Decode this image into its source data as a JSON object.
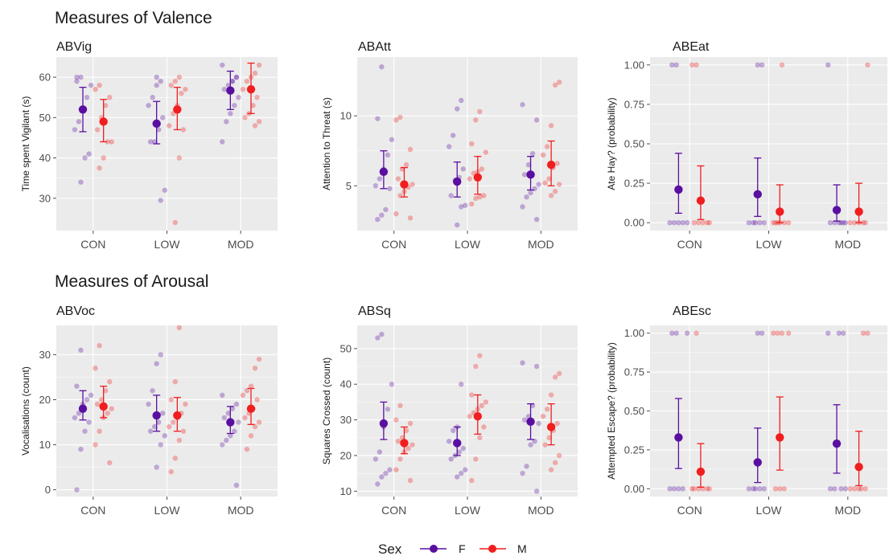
{
  "sections": [
    {
      "title": "Measures of Valence"
    },
    {
      "title": "Measures of Arousal"
    }
  ],
  "legend": {
    "title": "Sex",
    "items": [
      {
        "label": "F",
        "color": "#4B0092"
      },
      {
        "label": "M",
        "color": "#FF1A1A"
      }
    ]
  },
  "colors": {
    "F": "#5a0fa0",
    "M": "#f01e1e",
    "panel_bg": "#ebebeb",
    "grid": "#ffffff"
  },
  "chart_data": [
    {
      "type": "scatter",
      "title": "ABVig",
      "xlabel": "",
      "ylabel": "Time spent Vigilant (s)",
      "categories": [
        "CON",
        "LOW",
        "MOD"
      ],
      "ylim": [
        22,
        65
      ],
      "yticks": [
        30,
        40,
        50,
        60
      ],
      "grid": true,
      "series": [
        {
          "name": "F",
          "mean": [
            52,
            48.5,
            56.7
          ],
          "ci": [
            [
              46.5,
              57.5
            ],
            [
              43.5,
              54
            ],
            [
              52,
              61.5
            ]
          ],
          "points": [
            [
              60,
              59,
              58,
              55,
              52,
              49,
              47,
              41,
              40,
              34,
              60
            ],
            [
              59,
              58,
              55,
              53,
              50,
              47,
              44,
              44,
              32,
              29.5,
              60
            ],
            [
              63,
              60,
              59,
              58,
              57,
              55,
              53,
              51,
              49,
              44,
              60,
              59
            ]
          ]
        },
        {
          "name": "M",
          "mean": [
            49,
            52,
            57
          ],
          "ci": [
            [
              44,
              54.5
            ],
            [
              47,
              57.5
            ],
            [
              51,
              63.5
            ]
          ],
          "points": [
            [
              58,
              57,
              55,
              53,
              50,
              47,
              44,
              44,
              40,
              37.5
            ],
            [
              60,
              59,
              58,
              57,
              56,
              53,
              51,
              48,
              47,
              40,
              24
            ],
            [
              63,
              61,
              60,
              59,
              57,
              55,
              53,
              51,
              50,
              49,
              48,
              57
            ]
          ]
        }
      ]
    },
    {
      "type": "scatter",
      "title": "ABAtt",
      "xlabel": "",
      "ylabel": "Attention to Threat (s)",
      "categories": [
        "CON",
        "LOW",
        "MOD"
      ],
      "ylim": [
        1.8,
        14.2
      ],
      "yticks": [
        5,
        10
      ],
      "grid": true,
      "series": [
        {
          "name": "F",
          "mean": [
            6,
            5.3,
            5.8
          ],
          "ci": [
            [
              4.8,
              7.5
            ],
            [
              4.2,
              6.7
            ],
            [
              4.7,
              7.1
            ]
          ],
          "points": [
            [
              13.5,
              9.8,
              8.3,
              7.2,
              6.2,
              5.5,
              5,
              4.8,
              3.3,
              2.9,
              2.6
            ],
            [
              11.1,
              10.5,
              8.6,
              7.8,
              6.2,
              5.6,
              5.4,
              4.3,
              3.6,
              3.5,
              2.2
            ],
            [
              10.8,
              9.7,
              7.3,
              6.5,
              5.8,
              5.1,
              4.8,
              4.5,
              4.2,
              3.5,
              2.6
            ]
          ]
        },
        {
          "name": "M",
          "mean": [
            5.1,
            5.6,
            6.5
          ],
          "ci": [
            [
              4.2,
              6.3
            ],
            [
              4.4,
              7.1
            ],
            [
              5,
              8.2
            ]
          ],
          "points": [
            [
              9.9,
              9.7,
              7.6,
              6.5,
              6.2,
              5.5,
              5.1,
              4.9,
              4.6,
              4.3,
              3,
              2.7
            ],
            [
              10.3,
              9.7,
              8,
              7.4,
              6.2,
              6,
              5.9,
              5.5,
              4.3,
              4.2,
              4.1,
              3.7
            ],
            [
              12.4,
              12.2,
              9.3,
              7.8,
              7.2,
              6.6,
              6.3,
              5.5,
              5.2,
              5.1,
              4.6,
              4.3
            ]
          ]
        }
      ]
    },
    {
      "type": "scatter",
      "title": "ABEat",
      "xlabel": "",
      "ylabel": "Ate Hay? (probability)",
      "categories": [
        "CON",
        "LOW",
        "MOD"
      ],
      "ylim": [
        -0.05,
        1.05
      ],
      "yticks": [
        0,
        0.25,
        0.5,
        0.75,
        1
      ],
      "ytick_labels": [
        "0.00",
        "0.25",
        "0.50",
        "0.75",
        "1.00"
      ],
      "grid": true,
      "series": [
        {
          "name": "F",
          "mean": [
            0.21,
            0.18,
            0.08
          ],
          "ci": [
            [
              0.06,
              0.44
            ],
            [
              0.04,
              0.41
            ],
            [
              0.01,
              0.24
            ]
          ],
          "points": [
            [
              1,
              1,
              0,
              0,
              0,
              0,
              0
            ],
            [
              1,
              1,
              0,
              0,
              0,
              0,
              0
            ],
            [
              1,
              0,
              0,
              0,
              0,
              0,
              0
            ]
          ]
        },
        {
          "name": "M",
          "mean": [
            0.14,
            0.07,
            0.07
          ],
          "ci": [
            [
              0.02,
              0.36
            ],
            [
              0,
              0.24
            ],
            [
              0,
              0.25
            ]
          ],
          "points": [
            [
              1,
              1,
              0,
              0,
              0,
              0,
              0
            ],
            [
              1,
              0,
              0,
              0,
              0,
              0,
              0
            ],
            [
              1,
              0,
              0,
              0,
              0,
              0
            ]
          ]
        }
      ]
    },
    {
      "type": "scatter",
      "title": "ABVoc",
      "xlabel": "",
      "ylabel": "Vocalisations (count)",
      "categories": [
        "CON",
        "LOW",
        "MOD"
      ],
      "ylim": [
        -1.5,
        36.5
      ],
      "yticks": [
        0,
        10,
        20,
        30
      ],
      "grid": true,
      "series": [
        {
          "name": "F",
          "mean": [
            18,
            16.5,
            15
          ],
          "ci": [
            [
              15.5,
              22
            ],
            [
              13,
              21
            ],
            [
              12.5,
              18.5
            ]
          ],
          "points": [
            [
              31,
              23,
              21,
              20,
              19,
              17,
              16,
              15,
              13,
              9,
              0
            ],
            [
              30,
              28,
              22,
              19,
              17,
              15,
              14,
              13,
              12,
              10,
              5
            ],
            [
              21,
              19,
              18,
              17,
              16,
              15,
              13,
              12,
              11,
              10,
              1
            ]
          ]
        },
        {
          "name": "M",
          "mean": [
            18.5,
            16.5,
            18
          ],
          "ci": [
            [
              16,
              23
            ],
            [
              13,
              20.5
            ],
            [
              14.5,
              22.5
            ]
          ],
          "points": [
            [
              32,
              27,
              24,
              22,
              20,
              19,
              18,
              17,
              16,
              13,
              10,
              6
            ],
            [
              36,
              24,
              20,
              19,
              17,
              16,
              15,
              14,
              13,
              11,
              7,
              4
            ],
            [
              29,
              27,
              23,
              22,
              21,
              20,
              18,
              17,
              16,
              15,
              14,
              12,
              9
            ]
          ]
        }
      ]
    },
    {
      "type": "scatter",
      "title": "ABSq",
      "xlabel": "",
      "ylabel": "Squares Crossed (count)",
      "categories": [
        "CON",
        "LOW",
        "MOD"
      ],
      "ylim": [
        8.5,
        56.5
      ],
      "yticks": [
        10,
        20,
        30,
        40,
        50
      ],
      "grid": true,
      "series": [
        {
          "name": "F",
          "mean": [
            29,
            23.5,
            29.5
          ],
          "ci": [
            [
              24.5,
              35
            ],
            [
              20,
              28
            ],
            [
              24.5,
              34.5
            ]
          ],
          "points": [
            [
              54,
              53,
              40,
              33,
              28,
              21,
              19,
              16,
              15,
              14,
              12
            ],
            [
              40,
              28,
              27,
              24,
              22,
              21,
              20,
              19,
              16,
              15,
              14
            ],
            [
              46,
              45,
              34,
              31,
              30,
              29,
              24,
              23,
              17,
              15,
              10
            ]
          ]
        },
        {
          "name": "M",
          "mean": [
            23.5,
            31,
            28
          ],
          "ci": [
            [
              20.5,
              28
            ],
            [
              26,
              37
            ],
            [
              23,
              34.5
            ]
          ],
          "points": [
            [
              34,
              30,
              29,
              27,
              25,
              24,
              23,
              22,
              21,
              19,
              16,
              13
            ],
            [
              48,
              45,
              37,
              35,
              34,
              33,
              32,
              31,
              28,
              25,
              19,
              13
            ],
            [
              43,
              42,
              37,
              33,
              31,
              29,
              27,
              25,
              23,
              20,
              18,
              16
            ]
          ]
        }
      ]
    },
    {
      "type": "scatter",
      "title": "ABEsc",
      "xlabel": "",
      "ylabel": "Attempted Escape? (probability)",
      "categories": [
        "CON",
        "LOW",
        "MOD"
      ],
      "ylim": [
        -0.05,
        1.05
      ],
      "yticks": [
        0,
        0.25,
        0.5,
        0.75,
        1
      ],
      "ytick_labels": [
        "0.00",
        "0.25",
        "0.50",
        "0.75",
        "1.00"
      ],
      "grid": true,
      "series": [
        {
          "name": "F",
          "mean": [
            0.33,
            0.17,
            0.29
          ],
          "ci": [
            [
              0.13,
              0.58
            ],
            [
              0.04,
              0.39
            ],
            [
              0.1,
              0.54
            ]
          ],
          "points": [
            [
              1,
              1,
              1,
              0,
              0,
              0,
              0
            ],
            [
              1,
              1,
              0,
              0,
              0,
              0,
              0
            ],
            [
              1,
              1,
              1,
              0,
              0,
              0,
              0
            ]
          ]
        },
        {
          "name": "M",
          "mean": [
            0.11,
            0.33,
            0.14
          ],
          "ci": [
            [
              0.01,
              0.29
            ],
            [
              0.12,
              0.59
            ],
            [
              0.02,
              0.37
            ]
          ],
          "points": [
            [
              1,
              0,
              0,
              0,
              0,
              0,
              0
            ],
            [
              1,
              1,
              1,
              1,
              0,
              0,
              0
            ],
            [
              1,
              1,
              0,
              0,
              0,
              0,
              0
            ]
          ]
        }
      ]
    }
  ]
}
